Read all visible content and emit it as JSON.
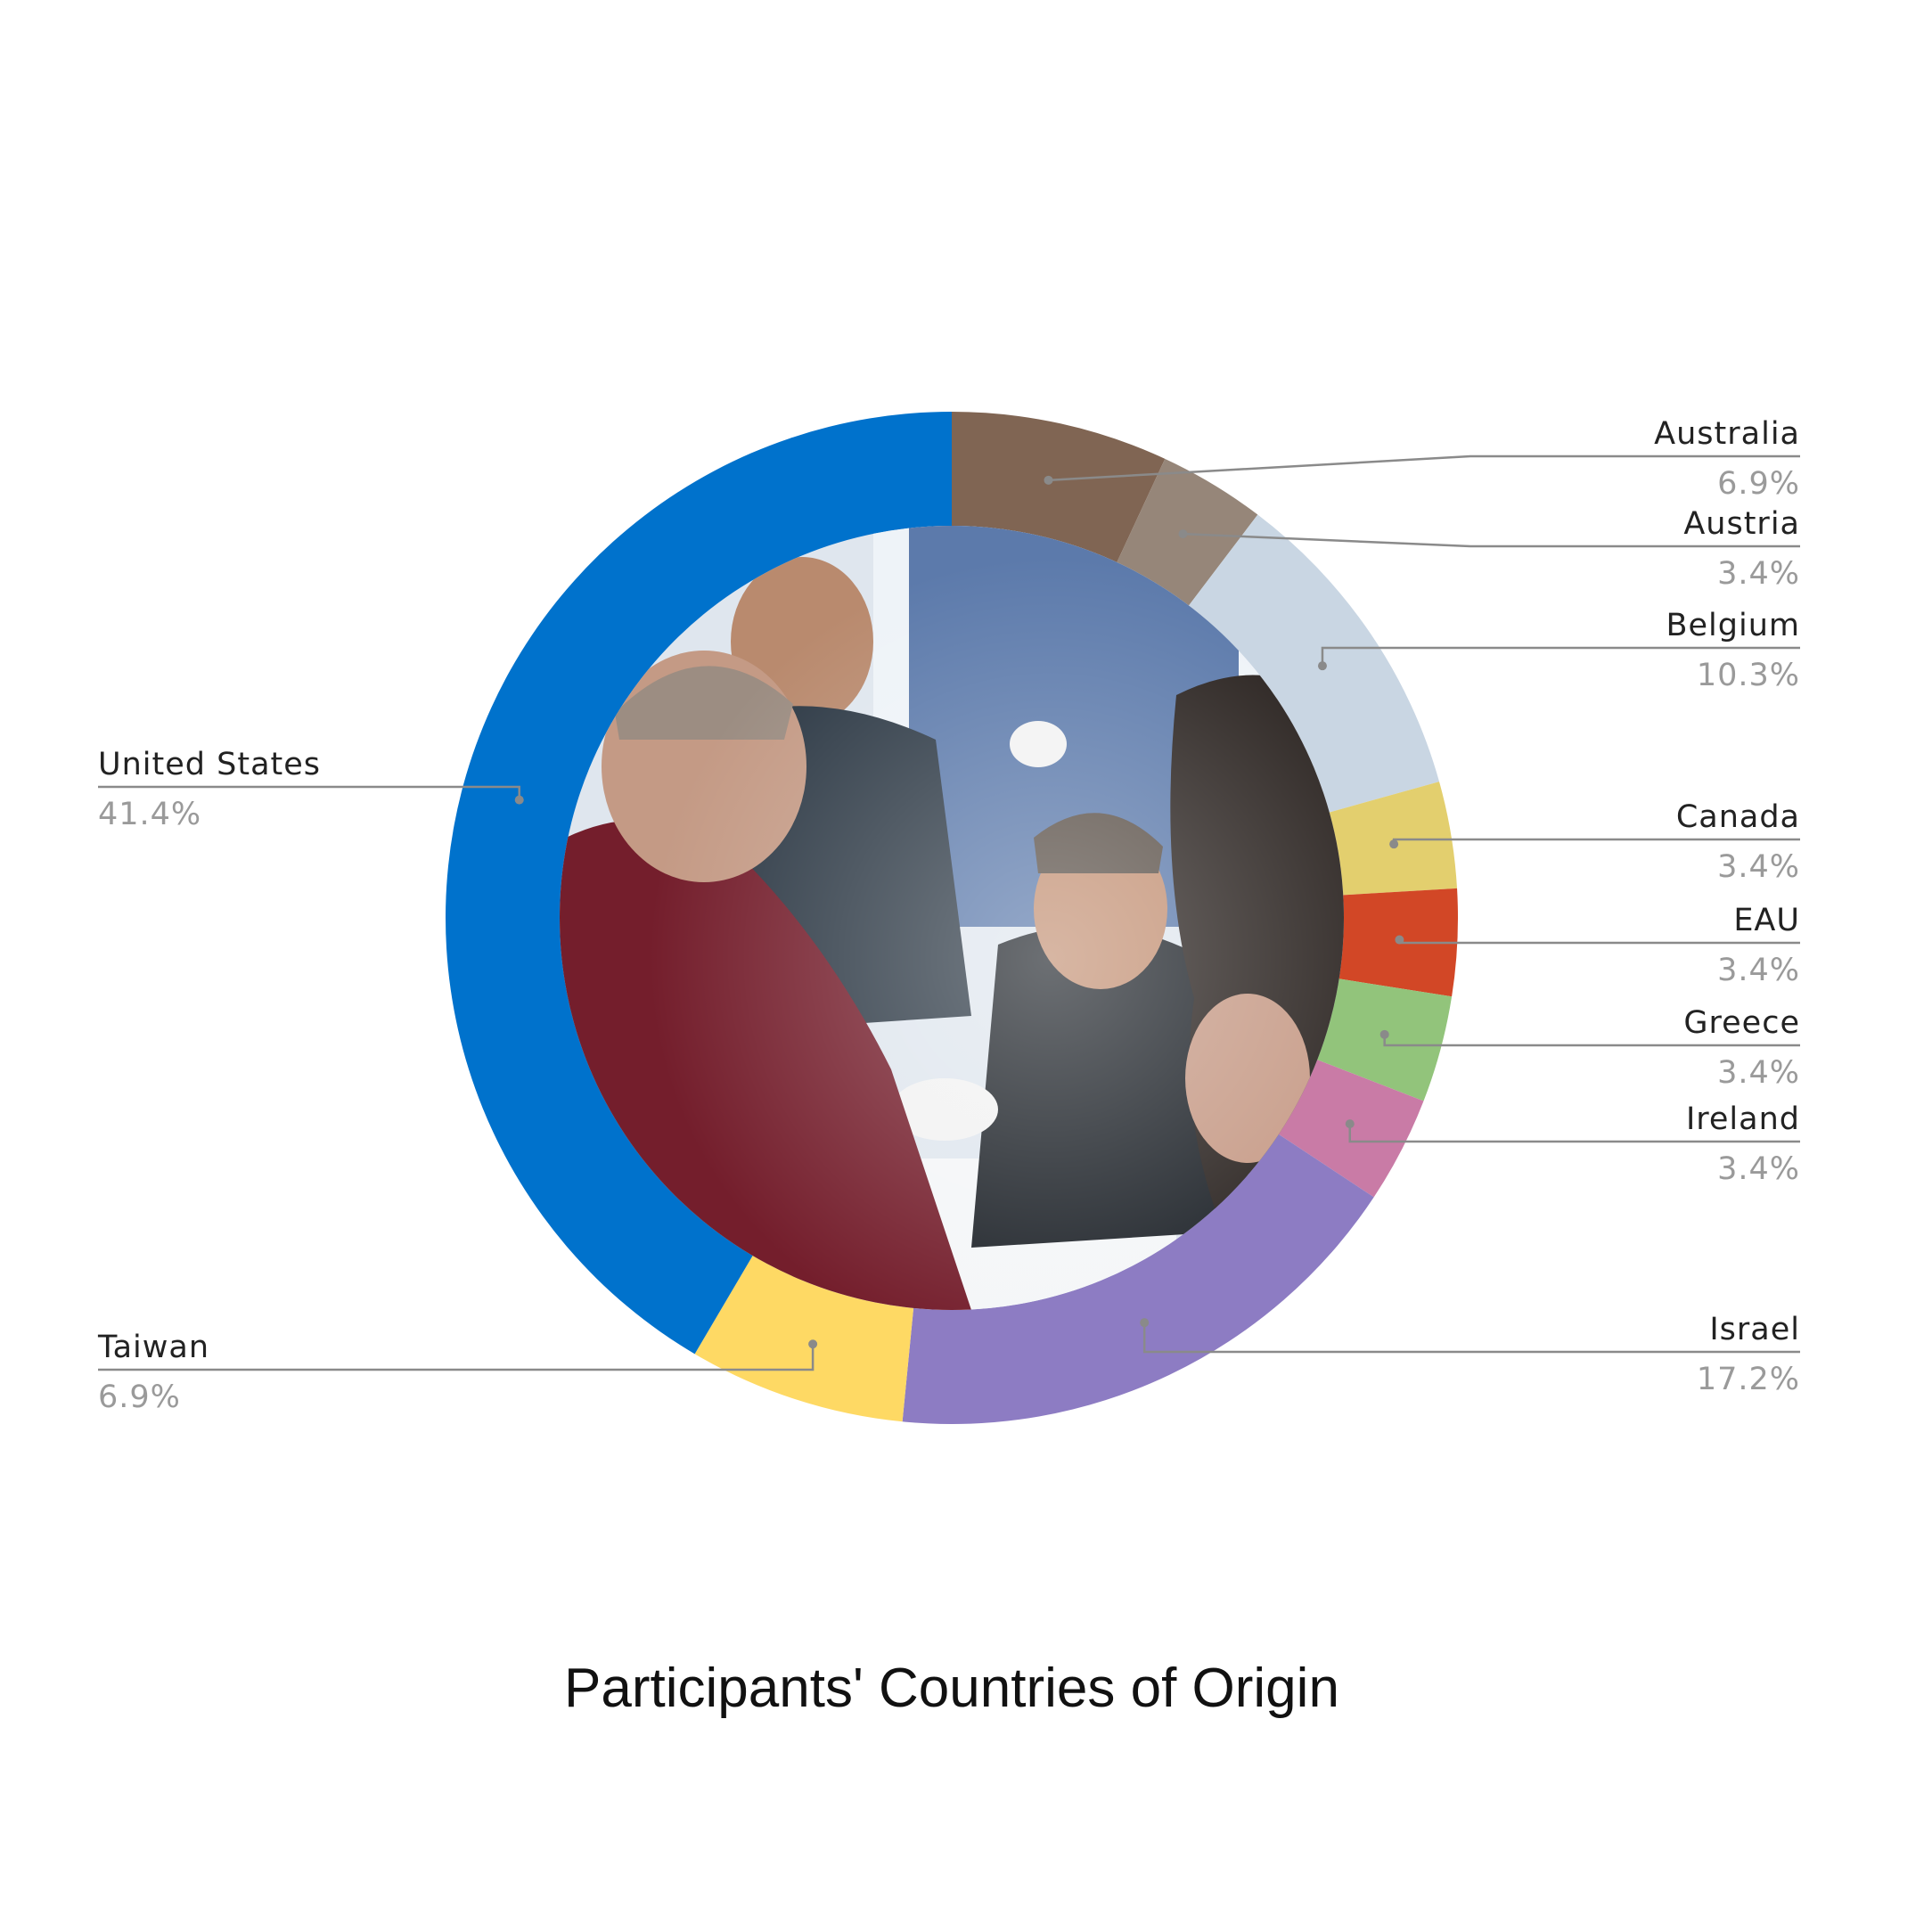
{
  "chart_data": {
    "type": "pie",
    "variant": "donut",
    "title": "Participants' Countries of Origin",
    "center_content": "photograph",
    "slices": [
      {
        "name": "Australia",
        "value": 6.9,
        "label": "6.9%",
        "color": "#806553",
        "side": "right"
      },
      {
        "name": "Austria",
        "value": 3.4,
        "label": "3.4%",
        "color": "#968679",
        "side": "right"
      },
      {
        "name": "Belgium",
        "value": 10.3,
        "label": "10.3%",
        "color": "#c9d6e3",
        "side": "right"
      },
      {
        "name": "Canada",
        "value": 3.4,
        "label": "3.4%",
        "color": "#e3cf6e",
        "side": "right"
      },
      {
        "name": "EAU",
        "value": 3.4,
        "label": "3.4%",
        "color": "#d24726",
        "side": "right"
      },
      {
        "name": "Greece",
        "value": 3.4,
        "label": "3.4%",
        "color": "#92c47b",
        "side": "right"
      },
      {
        "name": "Ireland",
        "value": 3.4,
        "label": "3.4%",
        "color": "#c97ba6",
        "side": "right"
      },
      {
        "name": "Israel",
        "value": 17.2,
        "label": "17.2%",
        "color": "#8d7cc3",
        "side": "right"
      },
      {
        "name": "Taiwan",
        "value": 6.9,
        "label": "6.9%",
        "color": "#fed964",
        "side": "left"
      },
      {
        "name": "United States",
        "value": 41.4,
        "label": "41.4%",
        "color": "#0072cc",
        "side": "left"
      }
    ],
    "start_angle_deg": 0,
    "direction": "clockwise",
    "legend": "none"
  }
}
